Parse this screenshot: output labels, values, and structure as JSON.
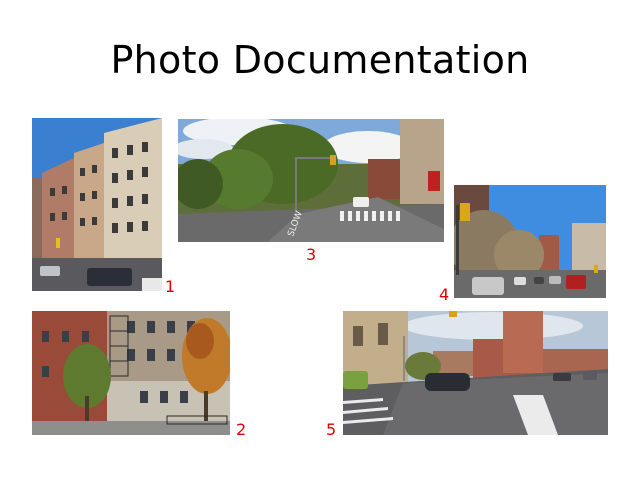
{
  "page": {
    "title": "Photo Documentation"
  },
  "photos": [
    {
      "label": "1",
      "scene": "brick-apartment-buildings-fire-escapes"
    },
    {
      "label": "2",
      "scene": "apartment-building-autumn-trees"
    },
    {
      "label": "3",
      "scene": "street-intersection-park-crosswalk"
    },
    {
      "label": "4",
      "scene": "tree-lined-avenue-traffic"
    },
    {
      "label": "5",
      "scene": "wide-avenue-intersection-buildings"
    }
  ],
  "colors": {
    "label": "#e00000",
    "title": "#000000"
  }
}
